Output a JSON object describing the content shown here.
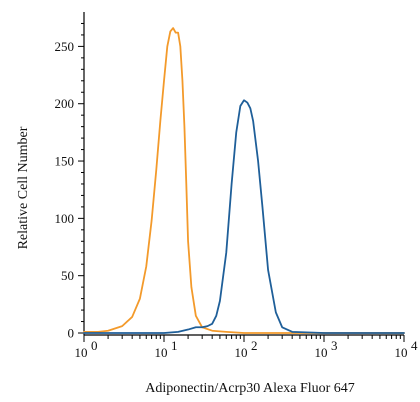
{
  "chart_data": {
    "type": "line",
    "title": "",
    "xlabel": "Adiponectin/Acrp30 Alexa Fluor 647",
    "ylabel": "Relative Cell Number",
    "x_scale": "log",
    "xlim": [
      1,
      10000
    ],
    "ylim": [
      0,
      280
    ],
    "grid": false,
    "legend": "none",
    "x_ticks": [
      {
        "value": 1,
        "base": "10",
        "exp": "0"
      },
      {
        "value": 10,
        "base": "10",
        "exp": "1"
      },
      {
        "value": 100,
        "base": "10",
        "exp": "2"
      },
      {
        "value": 1000,
        "base": "10",
        "exp": "3"
      },
      {
        "value": 10000,
        "base": "10",
        "exp": "4"
      }
    ],
    "y_ticks": [
      0,
      50,
      100,
      150,
      200,
      250
    ],
    "series": [
      {
        "color": "#F39A2B",
        "x": [
          1,
          1.5,
          2,
          3,
          4,
          5,
          6,
          7,
          8,
          9,
          10,
          11,
          12,
          13,
          14,
          15,
          16,
          17,
          18,
          19,
          20,
          22,
          25,
          30,
          40,
          60,
          100,
          1000,
          10000
        ],
        "y": [
          1,
          1,
          2,
          6,
          14,
          30,
          58,
          98,
          142,
          185,
          220,
          250,
          263,
          266,
          262,
          262,
          250,
          220,
          180,
          130,
          80,
          40,
          15,
          5,
          2,
          1,
          0,
          0,
          0
        ]
      },
      {
        "color": "#1F5F99",
        "x": [
          1,
          10,
          15,
          20,
          25,
          30,
          35,
          40,
          45,
          50,
          60,
          70,
          80,
          90,
          100,
          110,
          120,
          130,
          150,
          170,
          200,
          250,
          300,
          400,
          1000,
          10000
        ],
        "y": [
          0,
          0,
          1,
          3,
          5,
          5,
          6,
          8,
          15,
          28,
          70,
          130,
          175,
          198,
          203,
          201,
          196,
          185,
          150,
          110,
          55,
          18,
          5,
          1,
          0,
          0
        ]
      }
    ]
  }
}
